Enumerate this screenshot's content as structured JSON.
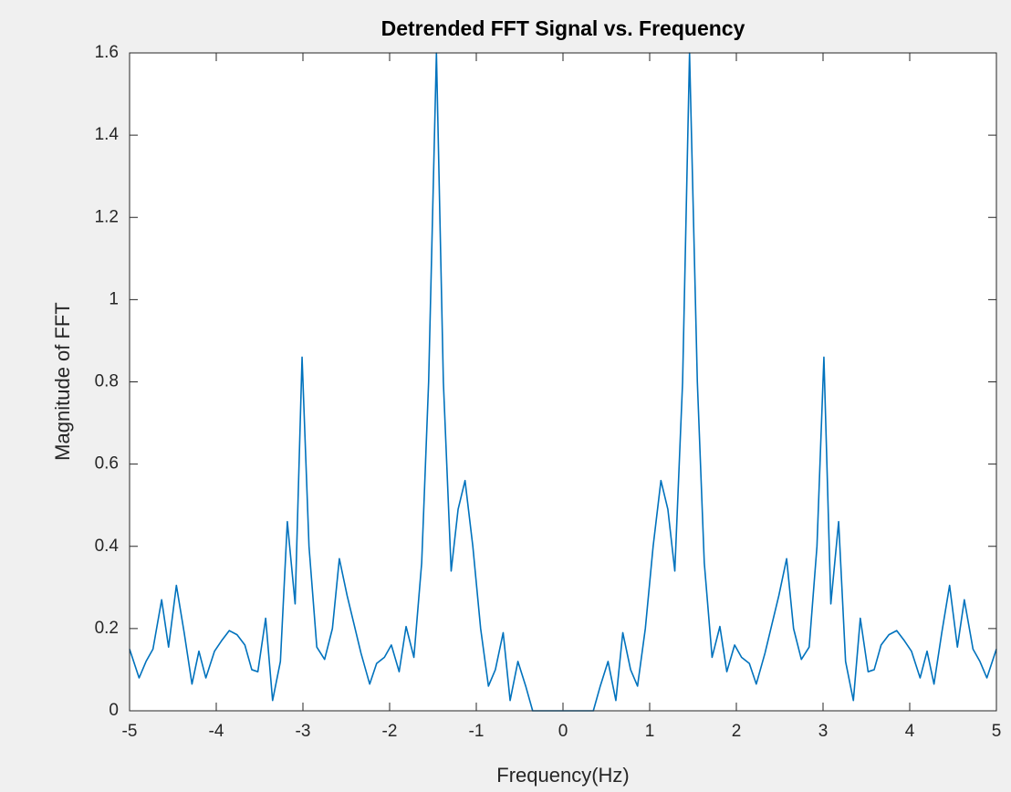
{
  "chart_data": {
    "type": "line",
    "title": "Detrended FFT Signal vs. Frequency",
    "x_label": "Frequency(Hz)",
    "y_label": "Magnitude of FFT",
    "color": "#0072bd",
    "x": [
      -5,
      -4.89,
      -4.81,
      -4.73,
      -4.63,
      -4.55,
      -4.46,
      -4.37,
      -4.28,
      -4.2,
      -4.12,
      -4.02,
      -3.94,
      -3.85,
      -3.76,
      -3.67,
      -3.59,
      -3.52,
      -3.43,
      -3.35,
      -3.26,
      -3.18,
      -3.09,
      -3.01,
      -2.93,
      -2.84,
      -2.75,
      -2.66,
      -2.58,
      -2.49,
      -2.41,
      -2.33,
      -2.23,
      -2.15,
      -2.06,
      -1.98,
      -1.89,
      -1.81,
      -1.72,
      -1.63,
      -1.55,
      -1.46,
      -1.38,
      -1.29,
      -1.21,
      -1.13,
      -1.04,
      -0.95,
      -0.86,
      -0.78,
      -0.69,
      -0.61,
      -0.52,
      -0.43,
      -0.35,
      -0.26,
      -0.18,
      -0.09,
      0,
      0.09,
      0.18,
      0.26,
      0.35,
      0.43,
      0.52,
      0.61,
      0.69,
      0.78,
      0.86,
      0.95,
      1.04,
      1.13,
      1.21,
      1.29,
      1.38,
      1.46,
      1.55,
      1.63,
      1.72,
      1.81,
      1.89,
      1.98,
      2.06,
      2.15,
      2.23,
      2.33,
      2.41,
      2.49,
      2.58,
      2.66,
      2.75,
      2.84,
      2.93,
      3.01,
      3.09,
      3.18,
      3.26,
      3.35,
      3.43,
      3.52,
      3.59,
      3.67,
      3.76,
      3.85,
      3.94,
      4.02,
      4.12,
      4.2,
      4.28,
      4.37,
      4.46,
      4.55,
      4.63,
      4.73,
      4.81,
      4.89,
      5
    ],
    "values": [
      0.15,
      0.08,
      0.12,
      0.15,
      0.27,
      0.155,
      0.305,
      0.19,
      0.065,
      0.145,
      0.08,
      0.145,
      0.17,
      0.195,
      0.185,
      0.16,
      0.1,
      0.095,
      0.225,
      0.025,
      0.12,
      0.46,
      0.26,
      0.86,
      0.4,
      0.155,
      0.125,
      0.2,
      0.37,
      0.28,
      0.21,
      0.14,
      0.065,
      0.115,
      0.13,
      0.16,
      0.095,
      0.205,
      0.13,
      0.36,
      0.8,
      1.6,
      0.8,
      0.34,
      0.49,
      0.56,
      0.4,
      0.2,
      0.06,
      0.1,
      0.19,
      0.025,
      0.12,
      0.06,
      0,
      0,
      0,
      0,
      0,
      0,
      0,
      0,
      0,
      0.06,
      0.12,
      0.025,
      0.19,
      0.1,
      0.06,
      0.2,
      0.4,
      0.56,
      0.49,
      0.34,
      0.8,
      1.6,
      0.8,
      0.36,
      0.13,
      0.205,
      0.095,
      0.16,
      0.13,
      0.115,
      0.065,
      0.14,
      0.21,
      0.28,
      0.37,
      0.2,
      0.125,
      0.155,
      0.4,
      0.86,
      0.26,
      0.46,
      0.12,
      0.025,
      0.225,
      0.095,
      0.1,
      0.16,
      0.185,
      0.195,
      0.17,
      0.145,
      0.08,
      0.145,
      0.065,
      0.19,
      0.305,
      0.155,
      0.27,
      0.15,
      0.12,
      0.08,
      0.15
    ],
    "xlim": [
      -5,
      5
    ],
    "xticks": [
      -5,
      -4,
      -3,
      -2,
      -1,
      0,
      1,
      2,
      3,
      4,
      5
    ],
    "ylim": [
      0,
      1.6
    ],
    "yticks": [
      0,
      0.2,
      0.4,
      0.6,
      0.8,
      1,
      1.2,
      1.4,
      1.6
    ],
    "grid": false
  }
}
